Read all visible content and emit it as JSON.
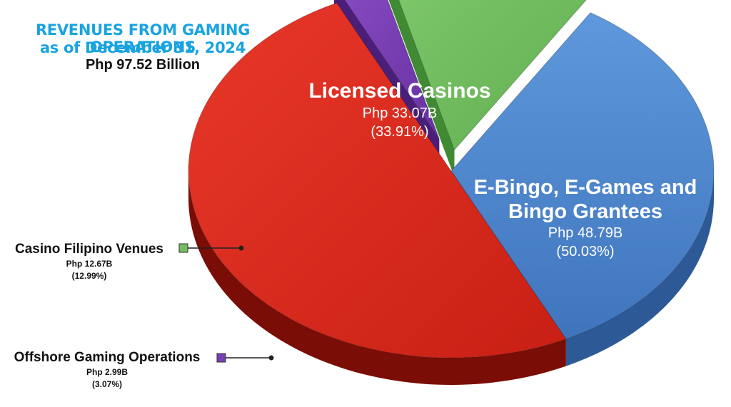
{
  "title_line1": "REVENUES FROM GAMING OPERATIONS",
  "title_line2": "as of December 31, 2024",
  "total": "Php 97.52 Billion",
  "colors": {
    "licensed_casinos": "#4f86cc",
    "egames": "#dd2b1c",
    "casino_filipino": "#72bd5f",
    "offshore": "#7b3fb4",
    "title": "#19a3e0"
  },
  "chart_data": {
    "type": "pie",
    "title": "REVENUES FROM GAMING OPERATIONS",
    "subtitle": "as of December 31, 2024",
    "unit": "Php Billion",
    "slices": [
      {
        "name": "Licensed Casinos",
        "value": 33.07,
        "value_label": "Php 33.07B",
        "percent_label": "(33.91%)",
        "color": "#4f86cc"
      },
      {
        "name": "E-Bingo, E-Games and Bingo Grantees",
        "value": 48.79,
        "value_label": "Php 48.79B",
        "percent_label": "(50.03%)",
        "color": "#dd2b1c"
      },
      {
        "name": "Offshore Gaming Operations",
        "value": 2.99,
        "value_label": "Php 2.99B",
        "percent_label": "(3.07%)",
        "color": "#7b3fb4"
      },
      {
        "name": "Casino Filipino Venues",
        "value": 12.67,
        "value_label": "Php 12.67B",
        "percent_label": "(12.99%)",
        "color": "#72bd5f"
      }
    ]
  }
}
